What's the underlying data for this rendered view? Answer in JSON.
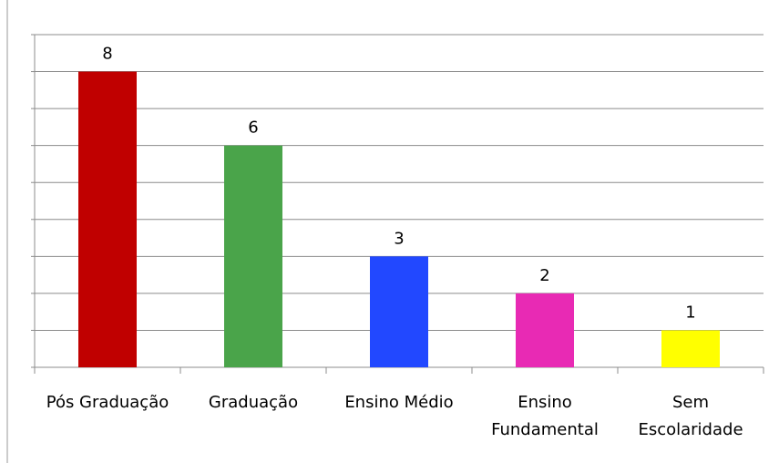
{
  "chart_data": {
    "type": "bar",
    "categories": [
      "Pós Graduação",
      "Graduação",
      "Ensino Médio",
      "Ensino Fundamental",
      "Sem Escolaridade"
    ],
    "values": [
      8,
      6,
      3,
      2,
      1
    ],
    "colors": [
      "#c00000",
      "#4aa44a",
      "#2248ff",
      "#e82ab4",
      "#ffff00"
    ],
    "ylim": [
      0,
      9
    ],
    "yticks": [
      0,
      1,
      2,
      3,
      4,
      5,
      6,
      7,
      8,
      9
    ],
    "grid": true
  }
}
